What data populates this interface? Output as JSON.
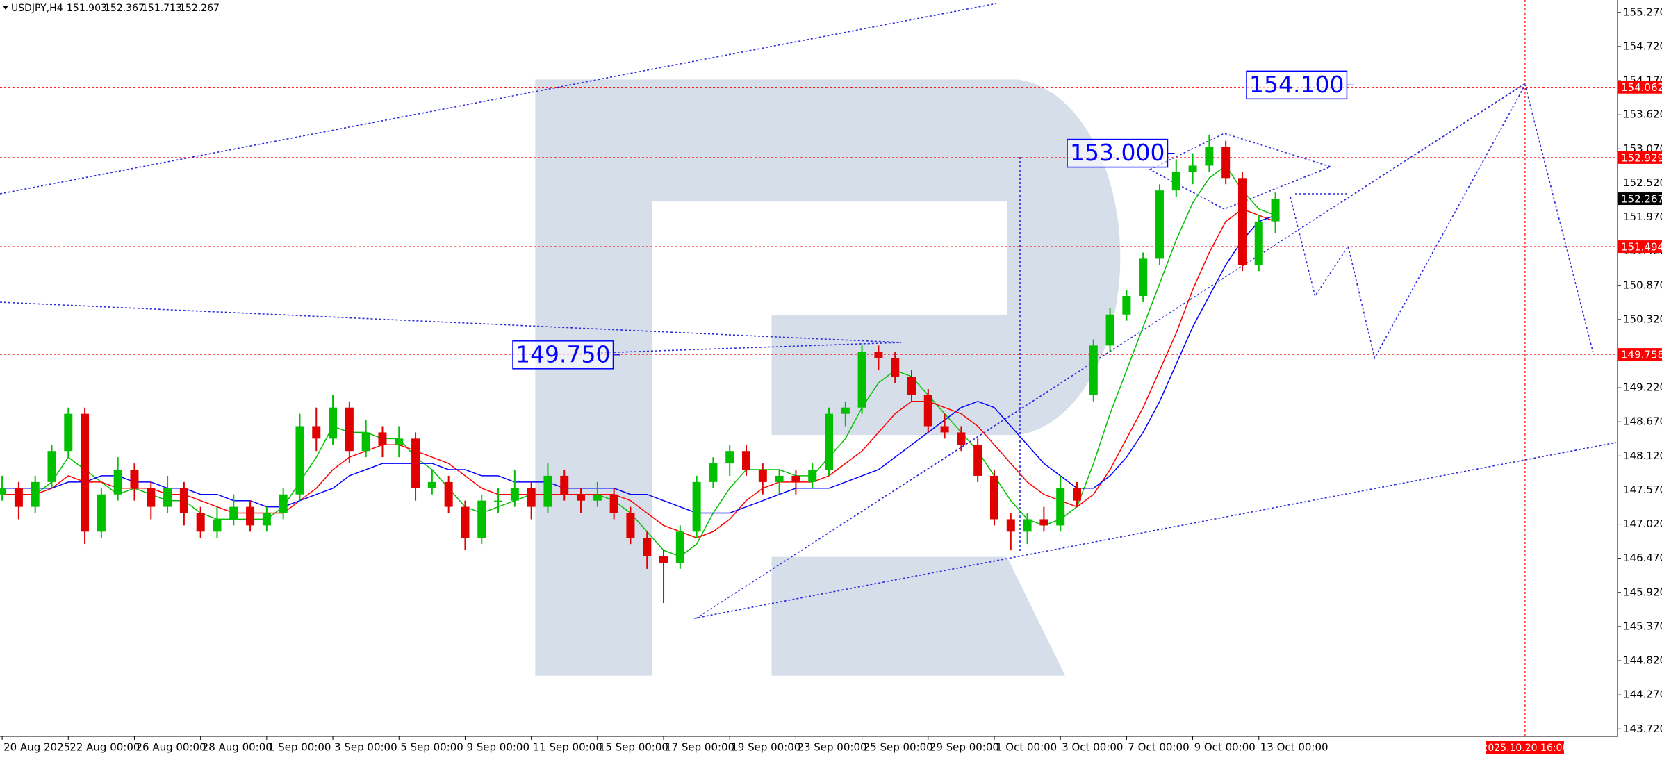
{
  "chart_data": {
    "type": "candlestick",
    "symbol": "USDJPY,H4",
    "candle_colors": {
      "up": "#00c000",
      "down": "#e00000"
    },
    "candles": [
      [
        147.5,
        147.8,
        147.4,
        147.6
      ],
      [
        147.6,
        147.7,
        147.1,
        147.3
      ],
      [
        147.3,
        147.8,
        147.2,
        147.7
      ],
      [
        147.7,
        148.3,
        147.6,
        148.2
      ],
      [
        148.2,
        148.9,
        148.1,
        148.8
      ],
      [
        148.8,
        148.9,
        146.7,
        146.9
      ],
      [
        146.9,
        147.6,
        146.8,
        147.5
      ],
      [
        147.5,
        148.1,
        147.4,
        147.9
      ],
      [
        147.9,
        148.0,
        147.4,
        147.6
      ],
      [
        147.6,
        147.7,
        147.1,
        147.3
      ],
      [
        147.3,
        147.8,
        147.2,
        147.6
      ],
      [
        147.6,
        147.7,
        147.0,
        147.2
      ],
      [
        147.2,
        147.3,
        146.8,
        146.9
      ],
      [
        146.9,
        147.3,
        146.8,
        147.1
      ],
      [
        147.1,
        147.5,
        147.0,
        147.3
      ],
      [
        147.3,
        147.4,
        146.9,
        147.0
      ],
      [
        147.0,
        147.3,
        146.9,
        147.2
      ],
      [
        147.2,
        147.6,
        147.1,
        147.5
      ],
      [
        147.5,
        148.8,
        147.4,
        148.6
      ],
      [
        148.6,
        148.9,
        148.2,
        148.4
      ],
      [
        148.4,
        149.1,
        148.3,
        148.9
      ],
      [
        148.9,
        149.0,
        148.0,
        148.2
      ],
      [
        148.2,
        148.7,
        148.1,
        148.5
      ],
      [
        148.5,
        148.6,
        148.1,
        148.3
      ],
      [
        148.3,
        148.6,
        148.1,
        148.4
      ],
      [
        148.4,
        148.5,
        147.4,
        147.6
      ],
      [
        147.6,
        147.9,
        147.5,
        147.7
      ],
      [
        147.7,
        147.8,
        147.2,
        147.3
      ],
      [
        147.3,
        147.4,
        146.6,
        146.8
      ],
      [
        146.8,
        147.5,
        146.7,
        147.4
      ],
      [
        147.4,
        147.6,
        147.2,
        147.4
      ],
      [
        147.4,
        147.9,
        147.3,
        147.6
      ],
      [
        147.6,
        147.7,
        147.1,
        147.3
      ],
      [
        147.3,
        148.0,
        147.2,
        147.8
      ],
      [
        147.8,
        147.9,
        147.4,
        147.5
      ],
      [
        147.5,
        147.6,
        147.2,
        147.4
      ],
      [
        147.4,
        147.7,
        147.3,
        147.5
      ],
      [
        147.5,
        147.6,
        147.1,
        147.2
      ],
      [
        147.2,
        147.3,
        146.7,
        146.8
      ],
      [
        146.8,
        146.9,
        146.3,
        146.5
      ],
      [
        146.5,
        146.6,
        145.75,
        146.4
      ],
      [
        146.4,
        147.0,
        146.3,
        146.9
      ],
      [
        146.9,
        147.8,
        146.8,
        147.7
      ],
      [
        147.7,
        148.1,
        147.6,
        148.0
      ],
      [
        148.0,
        148.3,
        147.8,
        148.2
      ],
      [
        148.2,
        148.3,
        147.8,
        147.9
      ],
      [
        147.9,
        148.0,
        147.5,
        147.7
      ],
      [
        147.7,
        147.9,
        147.5,
        147.8
      ],
      [
        147.8,
        147.9,
        147.5,
        147.7
      ],
      [
        147.7,
        148.0,
        147.6,
        147.9
      ],
      [
        147.9,
        148.9,
        147.8,
        148.8
      ],
      [
        148.8,
        149.0,
        148.6,
        148.9
      ],
      [
        148.9,
        149.9,
        148.8,
        149.8
      ],
      [
        149.8,
        149.9,
        149.5,
        149.7
      ],
      [
        149.7,
        149.8,
        149.3,
        149.4
      ],
      [
        149.4,
        149.5,
        149.0,
        149.1
      ],
      [
        149.1,
        149.2,
        148.5,
        148.6
      ],
      [
        148.6,
        148.8,
        148.4,
        148.5
      ],
      [
        148.5,
        148.6,
        148.2,
        148.3
      ],
      [
        148.3,
        148.4,
        147.7,
        147.8
      ],
      [
        147.8,
        147.9,
        147.0,
        147.1
      ],
      [
        147.1,
        147.2,
        146.6,
        146.9
      ],
      [
        146.9,
        147.2,
        146.7,
        147.1
      ],
      [
        147.1,
        147.3,
        146.9,
        147.0
      ],
      [
        147.0,
        147.8,
        146.9,
        147.6
      ],
      [
        147.6,
        147.7,
        147.3,
        147.4
      ],
      [
        149.1,
        150.0,
        149.0,
        149.9
      ],
      [
        149.9,
        150.5,
        149.8,
        150.4
      ],
      [
        150.4,
        150.8,
        150.3,
        150.7
      ],
      [
        150.7,
        151.4,
        150.6,
        151.3
      ],
      [
        151.3,
        152.5,
        151.2,
        152.4
      ],
      [
        152.4,
        152.9,
        152.3,
        152.7
      ],
      [
        152.7,
        153.0,
        152.5,
        152.8
      ],
      [
        152.8,
        153.3,
        152.7,
        153.1
      ],
      [
        153.1,
        153.2,
        152.5,
        152.6
      ],
      [
        152.6,
        152.7,
        151.1,
        151.2
      ],
      [
        151.2,
        152.0,
        151.1,
        151.9
      ],
      [
        151.903,
        152.367,
        151.713,
        152.267
      ]
    ],
    "lines": [
      {
        "color": "#00c000",
        "values": [
          147.5,
          147.5,
          147.5,
          147.7,
          148.1,
          147.9,
          147.7,
          147.5,
          147.6,
          147.5,
          147.4,
          147.4,
          147.2,
          147.1,
          147.1,
          147.1,
          147.1,
          147.3,
          147.7,
          148.1,
          148.6,
          148.5,
          148.5,
          148.4,
          148.4,
          148.1,
          147.9,
          147.6,
          147.3,
          147.2,
          147.3,
          147.4,
          147.5,
          147.5,
          147.5,
          147.5,
          147.5,
          147.4,
          147.2,
          146.9,
          146.6,
          146.5,
          146.7,
          147.2,
          147.6,
          147.9,
          147.9,
          147.9,
          147.8,
          147.8,
          148.1,
          148.4,
          148.9,
          149.3,
          149.5,
          149.4,
          149.1,
          148.8,
          148.5,
          148.2,
          147.8,
          147.4,
          147.1,
          147.0,
          147.1,
          147.3,
          148.0,
          148.8,
          149.5,
          150.2,
          150.9,
          151.6,
          152.2,
          152.6,
          152.8,
          152.4,
          152.1,
          152.0
        ]
      },
      {
        "color": "#ff0000",
        "values": [
          147.5,
          147.5,
          147.5,
          147.6,
          147.8,
          147.7,
          147.7,
          147.6,
          147.6,
          147.6,
          147.5,
          147.5,
          147.4,
          147.3,
          147.2,
          147.2,
          147.2,
          147.2,
          147.4,
          147.6,
          147.9,
          148.1,
          148.2,
          148.3,
          148.3,
          148.2,
          148.1,
          148.0,
          147.8,
          147.6,
          147.5,
          147.5,
          147.5,
          147.5,
          147.5,
          147.5,
          147.5,
          147.5,
          147.4,
          147.2,
          147.0,
          146.9,
          146.8,
          146.9,
          147.1,
          147.4,
          147.6,
          147.7,
          147.7,
          147.7,
          147.8,
          148.0,
          148.2,
          148.5,
          148.8,
          149.0,
          149.0,
          148.9,
          148.8,
          148.6,
          148.3,
          148.0,
          147.7,
          147.5,
          147.4,
          147.3,
          147.5,
          147.9,
          148.4,
          148.9,
          149.5,
          150.1,
          150.8,
          151.4,
          151.9,
          152.1,
          152.0,
          151.9
        ]
      },
      {
        "color": "#0000ff",
        "values": [
          147.6,
          147.6,
          147.6,
          147.6,
          147.7,
          147.7,
          147.8,
          147.8,
          147.7,
          147.7,
          147.6,
          147.6,
          147.5,
          147.5,
          147.4,
          147.4,
          147.3,
          147.3,
          147.4,
          147.5,
          147.6,
          147.8,
          147.9,
          148.0,
          148.0,
          148.0,
          148.0,
          147.9,
          147.9,
          147.8,
          147.8,
          147.7,
          147.7,
          147.7,
          147.6,
          147.6,
          147.6,
          147.6,
          147.5,
          147.5,
          147.4,
          147.3,
          147.2,
          147.2,
          147.2,
          147.3,
          147.4,
          147.5,
          147.6,
          147.6,
          147.6,
          147.7,
          147.8,
          147.9,
          148.1,
          148.3,
          148.5,
          148.7,
          148.9,
          149.0,
          148.9,
          148.6,
          148.3,
          148.0,
          147.8,
          147.6,
          147.6,
          147.8,
          148.1,
          148.5,
          149.0,
          149.6,
          150.2,
          150.7,
          151.2,
          151.6,
          151.9,
          152.0
        ]
      }
    ],
    "forecast": {
      "color": "#2a2ae0",
      "x": [
        77.9,
        79.4,
        81.4,
        83.0,
        92.1,
        96.2
      ],
      "values": [
        152.3,
        150.7,
        151.5,
        149.7,
        154.1,
        149.8
      ]
    },
    "levels": [
      {
        "value": 154.062,
        "color": "#ff0000"
      },
      {
        "value": 152.929,
        "color": "#ff0000"
      },
      {
        "value": 151.494,
        "color": "#ff0000"
      },
      {
        "value": 149.758,
        "color": "#ff0000"
      }
    ],
    "annotations": [
      {
        "value": 154.1,
        "label": "154.100"
      },
      {
        "value": 153.0,
        "label": "153.000"
      },
      {
        "value": 149.75,
        "label": "149.750"
      }
    ],
    "time_marker": {
      "value": 92.1,
      "label": "2025.10.20 16:00"
    },
    "xlim": [
      -0.13,
      97.65
    ],
    "xticks": [
      {
        "value": 0,
        "label": "20 Aug 2025"
      },
      {
        "value": 4,
        "label": "22 Aug 00:00"
      },
      {
        "value": 8,
        "label": "26 Aug 00:00"
      },
      {
        "value": 12,
        "label": "28 Aug 00:00"
      },
      {
        "value": 16,
        "label": "1 Sep 00:00"
      },
      {
        "value": 20,
        "label": "3 Sep 00:00"
      },
      {
        "value": 24,
        "label": "5 Sep 00:00"
      },
      {
        "value": 28,
        "label": "9 Sep 00:00"
      },
      {
        "value": 32,
        "label": "11 Sep 00:00"
      },
      {
        "value": 36,
        "label": "15 Sep 00:00"
      },
      {
        "value": 40,
        "label": "17 Sep 00:00"
      },
      {
        "value": 44,
        "label": "19 Sep 00:00"
      },
      {
        "value": 48,
        "label": "23 Sep 00:00"
      },
      {
        "value": 52,
        "label": "25 Sep 00:00"
      },
      {
        "value": 56,
        "label": "29 Sep 00:00"
      },
      {
        "value": 60,
        "label": "1 Oct 00:00"
      },
      {
        "value": 64,
        "label": "3 Oct 00:00"
      },
      {
        "value": 68,
        "label": "7 Oct 00:00"
      },
      {
        "value": 72,
        "label": "9 Oct 00:00"
      },
      {
        "value": 76,
        "label": "13 Oct 00:00"
      }
    ],
    "ylim": [
      143.6,
      155.47
    ],
    "yticks": [
      {
        "value": 155.27,
        "label": "155.270"
      },
      {
        "value": 154.72,
        "label": "154.720"
      },
      {
        "value": 154.17,
        "label": "154.170"
      },
      {
        "value": 153.62,
        "label": "153.620"
      },
      {
        "value": 153.07,
        "label": "153.070"
      },
      {
        "value": 152.52,
        "label": "152.520"
      },
      {
        "value": 151.97,
        "label": "151.970"
      },
      {
        "value": 151.42,
        "label": "151.420"
      },
      {
        "value": 150.87,
        "label": "150.870"
      },
      {
        "value": 150.32,
        "label": "150.320"
      },
      {
        "value": 149.77,
        "label": "149.770"
      },
      {
        "value": 149.22,
        "label": "149.220"
      },
      {
        "value": 148.67,
        "label": "148.670"
      },
      {
        "value": 148.12,
        "label": "148.120"
      },
      {
        "value": 147.57,
        "label": "147.570"
      },
      {
        "value": 147.02,
        "label": "147.020"
      },
      {
        "value": 146.47,
        "label": "146.470"
      },
      {
        "value": 145.92,
        "label": "145.920"
      },
      {
        "value": 145.37,
        "label": "145.370"
      },
      {
        "value": 144.82,
        "label": "144.820"
      },
      {
        "value": 144.27,
        "label": "144.270"
      },
      {
        "value": 143.72,
        "label": "143.720"
      }
    ]
  }
}
